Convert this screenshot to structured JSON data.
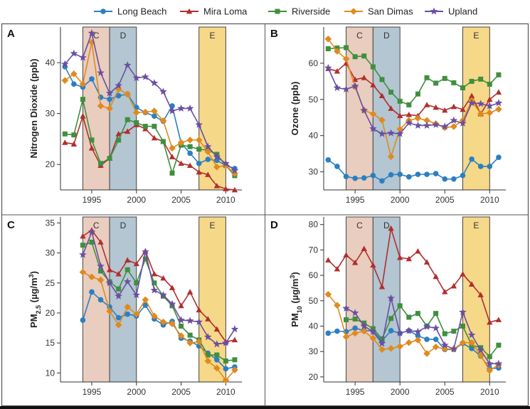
{
  "legend": [
    {
      "name": "Long Beach",
      "color": "#2b7fc1",
      "marker": "circle"
    },
    {
      "name": "Mira Loma",
      "color": "#b22e2e",
      "marker": "triangle"
    },
    {
      "name": "Riverside",
      "color": "#3f8f3f",
      "marker": "square"
    },
    {
      "name": "San Dimas",
      "color": "#e08a1e",
      "marker": "diamond"
    },
    {
      "name": "Upland",
      "color": "#6a4fa0",
      "marker": "star"
    }
  ],
  "periods": [
    {
      "label": "C",
      "start": 1994,
      "end": 1997,
      "color": "#e9cdbf"
    },
    {
      "label": "D",
      "start": 1997,
      "end": 2000,
      "color": "#b3c6d2"
    },
    {
      "label": "E",
      "start": 2007,
      "end": 2010,
      "color": "#f6d889"
    }
  ],
  "chart_data": [
    {
      "panel": "A",
      "type": "line",
      "ylabel": "Nitrogen Dioxide (ppb)",
      "xlim": [
        1991.5,
        2011.8
      ],
      "ylim": [
        15,
        47
      ],
      "xticks": [
        1995,
        2000,
        2005,
        2010
      ],
      "yticks": [
        20,
        30,
        40
      ],
      "x": [
        1992,
        1993,
        1994,
        1995,
        1996,
        1997,
        1998,
        1999,
        2000,
        2001,
        2002,
        2003,
        2004,
        2005,
        2006,
        2007,
        2008,
        2009,
        2010,
        2011
      ],
      "series": [
        {
          "name": "Long Beach",
          "values": [
            39.2,
            35.8,
            35.2,
            36.8,
            33.2,
            32.8,
            33.5,
            33.8,
            31.2,
            30.2,
            29.5,
            28.5,
            31.5,
            24.2,
            22.2,
            20.2,
            21.0,
            20.8,
            19.8,
            19.2
          ]
        },
        {
          "name": "Mira Loma",
          "values": [
            24.3,
            24.0,
            29.5,
            23.2,
            19.8,
            21.2,
            26.0,
            26.5,
            27.8,
            27.0,
            25.2,
            24.5,
            21.5,
            20.2,
            19.8,
            18.5,
            18.0,
            15.8,
            15.2,
            15.0
          ]
        },
        {
          "name": "Riverside",
          "values": [
            26.0,
            25.8,
            32.8,
            24.8,
            20.2,
            21.2,
            24.8,
            28.8,
            28.2,
            27.5,
            27.5,
            24.5,
            18.3,
            23.8,
            23.5,
            23.0,
            22.8,
            22.0,
            19.8,
            17.8
          ]
        },
        {
          "name": "San Dimas",
          "values": [
            36.5,
            37.8,
            35.8,
            44.0,
            31.5,
            31.0,
            34.8,
            33.8,
            30.2,
            30.3,
            30.5,
            28.6,
            23.2,
            24.3,
            24.8,
            24.8,
            22.5,
            19.5,
            19.8,
            18.2
          ]
        },
        {
          "name": "Upland",
          "values": [
            39.7,
            41.8,
            41.0,
            45.8,
            38.0,
            34.0,
            35.5,
            39.5,
            37.0,
            37.2,
            36.0,
            34.3,
            30.5,
            31.0,
            31.0,
            27.8,
            23.5,
            21.5,
            20.2,
            18.8
          ]
        }
      ]
    },
    {
      "panel": "B",
      "type": "line",
      "ylabel": "Ozone (ppb)",
      "xlim": [
        1991.5,
        2011.8
      ],
      "ylim": [
        25,
        70
      ],
      "xticks": [
        1995,
        2000,
        2005,
        2010
      ],
      "yticks": [
        30,
        40,
        50,
        60
      ],
      "x": [
        1992,
        1993,
        1994,
        1995,
        1996,
        1997,
        1998,
        1999,
        2000,
        2001,
        2002,
        2003,
        2004,
        2005,
        2006,
        2007,
        2008,
        2009,
        2010,
        2011
      ],
      "series": [
        {
          "name": "Long Beach",
          "values": [
            33.3,
            31.5,
            28.7,
            28.2,
            28.3,
            29.0,
            27.5,
            29.2,
            29.3,
            28.6,
            29.3,
            29.3,
            29.5,
            28.0,
            28.0,
            29.0,
            33.5,
            31.5,
            31.5,
            34.0
          ]
        },
        {
          "name": "Mira Loma",
          "values": [
            58.5,
            57.8,
            60.0,
            55.5,
            56.0,
            54.0,
            51.0,
            47.5,
            45.5,
            45.8,
            45.5,
            48.5,
            47.8,
            47.0,
            48.0,
            47.2,
            51.0,
            46.0,
            50.0,
            52.0
          ]
        },
        {
          "name": "Riverside",
          "values": [
            64.0,
            64.2,
            64.3,
            61.8,
            62.0,
            59.0,
            55.5,
            52.0,
            49.5,
            48.5,
            51.5,
            56.0,
            54.5,
            55.8,
            54.6,
            53.2,
            55.0,
            55.6,
            54.2,
            56.8
          ]
        },
        {
          "name": "San Dimas",
          "values": [
            66.7,
            63.3,
            61.2,
            53.5,
            47.0,
            46.0,
            44.3,
            34.2,
            41.8,
            44.2,
            44.8,
            44.2,
            43.3,
            42.2,
            42.5,
            44.2,
            49.7,
            46.0,
            46.3,
            47.3
          ]
        },
        {
          "name": "Upland",
          "values": [
            58.7,
            53.2,
            52.8,
            53.7,
            47.0,
            41.9,
            40.5,
            40.7,
            40.5,
            43.5,
            42.8,
            42.8,
            43.0,
            42.5,
            44.2,
            43.4,
            49.0,
            48.8,
            48.2,
            49.0
          ]
        }
      ]
    },
    {
      "panel": "C",
      "type": "line",
      "ylabel": "PM2.5 (µg/m³)",
      "ylabel_parts": {
        "base": "PM",
        "sub": "2.5",
        "unit_pre": " (µg/m",
        "sup": "3",
        "unit_post": ")"
      },
      "xlim": [
        1991.5,
        2011.8
      ],
      "ylim": [
        8.5,
        36
      ],
      "xticks": [
        1995,
        2000,
        2005,
        2010
      ],
      "yticks": [
        10,
        15,
        20,
        25,
        30,
        35
      ],
      "x": [
        1994,
        1995,
        1996,
        1997,
        1998,
        1999,
        2000,
        2001,
        2002,
        2003,
        2004,
        2005,
        2006,
        2007,
        2008,
        2009,
        2010,
        2011
      ],
      "series": [
        {
          "name": "Long Beach",
          "values": [
            18.8,
            23.5,
            22.2,
            21.0,
            19.2,
            19.8,
            19.5,
            21.3,
            19.0,
            18.0,
            18.6,
            15.8,
            15.3,
            14.5,
            13.3,
            12.2,
            10.7,
            11.0
          ]
        },
        {
          "name": "Mira Loma",
          "values": [
            32.8,
            33.8,
            31.8,
            27.2,
            26.5,
            28.8,
            28.2,
            30.3,
            26.5,
            25.8,
            24.2,
            21.2,
            23.5,
            20.5,
            19.0,
            17.3,
            15.2,
            15.5
          ]
        },
        {
          "name": "Riverside",
          "values": [
            31.3,
            31.8,
            27.0,
            25.2,
            24.0,
            27.2,
            25.0,
            29.0,
            25.0,
            22.8,
            21.2,
            17.8,
            16.3,
            15.5,
            13.0,
            13.0,
            12.0,
            12.2
          ]
        },
        {
          "name": "San Dimas",
          "values": [
            26.8,
            26.0,
            25.5,
            20.3,
            18.0,
            21.0,
            19.8,
            22.2,
            19.5,
            18.5,
            18.2,
            16.2,
            15.0,
            15.2,
            12.0,
            10.8,
            8.8,
            10.5
          ]
        },
        {
          "name": "Upland",
          "values": [
            29.7,
            33.5,
            27.8,
            25.0,
            22.8,
            25.2,
            23.0,
            30.2,
            23.8,
            23.0,
            21.5,
            18.8,
            18.7,
            18.5,
            16.0,
            14.8,
            15.0,
            17.3
          ]
        }
      ]
    },
    {
      "panel": "D",
      "type": "line",
      "ylabel": "PM10 (µg/m³)",
      "ylabel_parts": {
        "base": "PM",
        "sub": "10",
        "unit_pre": " (µg/m",
        "sup": "3",
        "unit_post": ")"
      },
      "xlim": [
        1991.5,
        2011.8
      ],
      "ylim": [
        18,
        83
      ],
      "xticks": [
        1995,
        2000,
        2005,
        2010
      ],
      "yticks": [
        20,
        30,
        40,
        50,
        60,
        70,
        80
      ],
      "x": [
        1992,
        1993,
        1994,
        1995,
        1996,
        1997,
        1998,
        1999,
        2000,
        2001,
        2002,
        2003,
        2004,
        2005,
        2006,
        2007,
        2008,
        2009,
        2010,
        2011
      ],
      "series": [
        {
          "name": "Long Beach",
          "values": [
            37.2,
            38.0,
            37.8,
            39.2,
            38.2,
            38.2,
            34.2,
            38.2,
            37.2,
            38.2,
            36.2,
            34.8,
            34.8,
            30.8,
            30.8,
            33.2,
            31.2,
            28.2,
            23.2,
            23.5
          ]
        },
        {
          "name": "Mira Loma",
          "values": [
            66.0,
            62.5,
            68.0,
            65.0,
            70.5,
            64.0,
            55.5,
            78.5,
            67.0,
            66.5,
            69.5,
            65.2,
            59.5,
            53.5,
            55.8,
            60.5,
            56.5,
            52.3,
            41.5,
            42.5
          ]
        },
        {
          "name": "Riverside",
          "values": [
            null,
            null,
            42.5,
            42.8,
            41.2,
            39.0,
            35.0,
            43.0,
            48.0,
            43.5,
            45.0,
            40.0,
            45.0,
            37.0,
            38.0,
            40.0,
            32.5,
            31.5,
            28.0,
            32.5
          ]
        },
        {
          "name": "San Dimas",
          "values": [
            52.5,
            48.2,
            35.8,
            37.2,
            38.0,
            35.2,
            30.8,
            31.2,
            32.0,
            33.5,
            34.5,
            29.2,
            31.8,
            31.0,
            31.0,
            33.5,
            33.5,
            28.5,
            22.5,
            24.8
          ]
        },
        {
          "name": "Upland",
          "values": [
            null,
            null,
            47.0,
            45.2,
            40.0,
            37.8,
            33.2,
            51.0,
            37.2,
            38.2,
            37.8,
            39.8,
            39.2,
            32.5,
            31.0,
            45.5,
            36.5,
            30.5,
            25.2,
            25.2
          ]
        }
      ]
    }
  ]
}
